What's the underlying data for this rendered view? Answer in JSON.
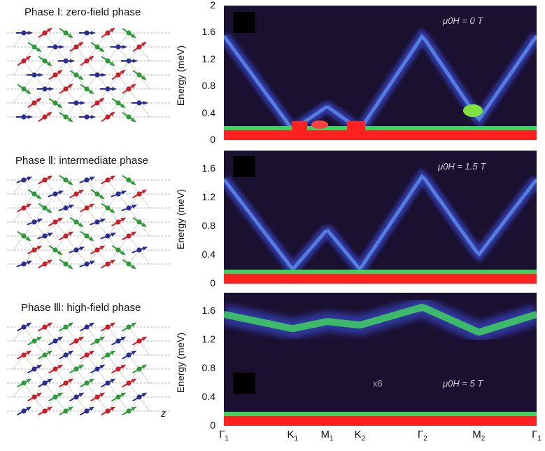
{
  "left": {
    "phases": [
      {
        "title": "Phase Ⅰ: zero-field phase"
      },
      {
        "title": "Phase Ⅱ: intermediate phase"
      },
      {
        "title": "Phase Ⅲ: high-field phase"
      }
    ],
    "axis_label": "z"
  },
  "colors": {
    "blue": "#2a2f8f",
    "red": "#c8202a",
    "green": "#2f9a3a",
    "intensity_low": "#1a1030",
    "intensity_mid": "#3a4ad0",
    "intensity_high": "#ff2020"
  },
  "chart_data": [
    {
      "type": "heatmap",
      "ylabel": "Energy (meV)",
      "field_label": "μ0H = 0 T",
      "yticks": [
        "2",
        "1.6",
        "1.2",
        "0.8",
        "0.4",
        "0"
      ],
      "ylim": [
        0,
        2
      ],
      "xticks": [
        "Γ1",
        "K1",
        "M1",
        "K2",
        "Γ2",
        "M2",
        "Γ1"
      ],
      "dispersion_meV": [
        1.55,
        0.15,
        0.5,
        0.15,
        1.55,
        0.3,
        1.55
      ]
    },
    {
      "type": "heatmap",
      "ylabel": "Energy (meV)",
      "field_label": "μ0H = 1.5 T",
      "yticks": [
        "1.6",
        "1.2",
        "0.8",
        "0.4",
        "0"
      ],
      "ylim": [
        0,
        1.85
      ],
      "xticks": [
        "Γ1",
        "K1",
        "M1",
        "K2",
        "Γ2",
        "M2",
        "Γ1"
      ],
      "dispersion_meV": [
        1.45,
        0.2,
        0.75,
        0.2,
        1.5,
        0.4,
        1.45
      ]
    },
    {
      "type": "heatmap",
      "ylabel": "Energy (meV)",
      "field_label": "μ0H = 5 T",
      "multiplier": "x6",
      "yticks": [
        "1.6",
        "1.2",
        "0.8",
        "0.4",
        "0"
      ],
      "ylim": [
        0,
        1.85
      ],
      "xticks": [
        "Γ1",
        "K1",
        "M1",
        "K2",
        "Γ2",
        "M2",
        "Γ1"
      ],
      "dispersion_meV": [
        1.55,
        1.35,
        1.45,
        1.4,
        1.65,
        1.3,
        1.55
      ]
    }
  ],
  "xaxis": {
    "ticks": [
      {
        "main": "Γ",
        "sub": "1"
      },
      {
        "main": "K",
        "sub": "1"
      },
      {
        "main": "M",
        "sub": "1"
      },
      {
        "main": "K",
        "sub": "2"
      },
      {
        "main": "Γ",
        "sub": "2"
      },
      {
        "main": "M",
        "sub": "2"
      },
      {
        "main": "Γ",
        "sub": "1"
      }
    ]
  }
}
